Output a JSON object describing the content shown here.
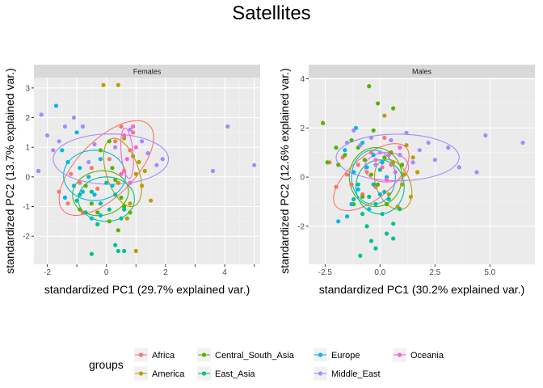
{
  "title": "Satellites",
  "colors": {
    "Africa": "#F8766D",
    "America": "#B79F00",
    "Central_South_Asia": "#00BA38",
    "East_Asia": "#00BFC4",
    "Europe": "#619CFF",
    "Middle_East": "#F564E3",
    "Oceania": "#F564E3"
  },
  "legend": {
    "title": "groups",
    "items": [
      {
        "label": "Africa",
        "color": "#F8766D"
      },
      {
        "label": "America",
        "color": "#B79F00"
      },
      {
        "label": "Central_South_Asia",
        "color": "#53B400"
      },
      {
        "label": "East_Asia",
        "color": "#00C094"
      },
      {
        "label": "Europe",
        "color": "#00B6EB"
      },
      {
        "label": "Middle_East",
        "color": "#A58AFF"
      },
      {
        "label": "Oceania",
        "color": "#FB61D7"
      }
    ]
  },
  "chart_data": [
    {
      "type": "scatter",
      "panel": "Females",
      "xlabel": "standardized PC1 (29.7% explained var.)",
      "ylabel": "standardized PC2 (13.7% explained var.)",
      "xlim": [
        -2.45,
        5.2
      ],
      "ylim": [
        -2.95,
        3.35
      ],
      "xticks": [
        -2,
        -1,
        0,
        1,
        2,
        3,
        4,
        5
      ],
      "xticklabels": [
        "-2",
        "",
        "0",
        "",
        "2",
        "",
        "4",
        ""
      ],
      "yticks": [
        -2,
        -1,
        0,
        1,
        2,
        3
      ],
      "grid": true,
      "ellipses": [
        {
          "group": "Africa",
          "color": "#F8766D",
          "cx": 0.0,
          "cy": 0.3,
          "rx": 2.05,
          "ry": 0.95,
          "angle": 45
        },
        {
          "group": "America",
          "color": "#B79F00",
          "cx": 0.55,
          "cy": 0.15,
          "rx": 1.2,
          "ry": 0.55,
          "angle": -72
        },
        {
          "group": "Central_South_Asia",
          "color": "#53B400",
          "cx": -0.2,
          "cy": -0.55,
          "rx": 0.95,
          "ry": 0.75,
          "angle": 10
        },
        {
          "group": "East_Asia",
          "color": "#00C094",
          "cx": 0.0,
          "cy": -0.75,
          "rx": 0.95,
          "ry": 0.75,
          "angle": 0
        },
        {
          "group": "Europe",
          "color": "#00B6EB",
          "cx": -0.4,
          "cy": 0.05,
          "rx": 1.05,
          "ry": 0.85,
          "angle": 0
        },
        {
          "group": "Middle_East",
          "color": "#A58AFF",
          "cx": 0.15,
          "cy": 0.6,
          "rx": 1.95,
          "ry": 0.85,
          "angle": 0
        },
        {
          "group": "Oceania",
          "color": "#FB61D7",
          "cx": 0.7,
          "cy": 0.8,
          "rx": 0.85,
          "ry": 0.2,
          "angle": -85
        }
      ],
      "series": [
        {
          "group": "Africa",
          "color": "#F8766D",
          "points": [
            [
              -1.6,
              -0.5
            ],
            [
              -1.3,
              -0.9
            ],
            [
              -0.8,
              -1.2
            ],
            [
              -0.5,
              0.3
            ],
            [
              0.1,
              0.6
            ],
            [
              0.3,
              1.2
            ],
            [
              0.5,
              1.7
            ],
            [
              0.8,
              0.9
            ],
            [
              -1.2,
              0.1
            ],
            [
              -0.3,
              -0.4
            ],
            [
              0.6,
              0.2
            ],
            [
              0.9,
              1.5
            ],
            [
              -0.9,
              -0.2
            ]
          ]
        },
        {
          "group": "America",
          "color": "#B79F00",
          "points": [
            [
              -0.1,
              3.1
            ],
            [
              0.4,
              3.1
            ],
            [
              0.6,
              1.3
            ],
            [
              0.9,
              0.7
            ],
            [
              1.0,
              0.1
            ],
            [
              1.2,
              -0.3
            ],
            [
              1.5,
              -0.8
            ],
            [
              0.4,
              -0.2
            ],
            [
              0.7,
              -1.4
            ],
            [
              1.0,
              -2.5
            ],
            [
              1.1,
              0.5
            ],
            [
              1.3,
              0.2
            ],
            [
              0.8,
              -0.9
            ]
          ]
        },
        {
          "group": "Central_South_Asia",
          "color": "#53B400",
          "points": [
            [
              0.1,
              1.2
            ],
            [
              -0.2,
              0.9
            ],
            [
              0.2,
              0.3
            ],
            [
              0.5,
              -0.7
            ],
            [
              0.8,
              -1.2
            ],
            [
              -0.7,
              -0.3
            ],
            [
              -0.3,
              -1.2
            ],
            [
              0.1,
              -1.5
            ],
            [
              -0.5,
              -0.9
            ],
            [
              0.3,
              -0.1
            ],
            [
              0.6,
              -1.0
            ],
            [
              -0.9,
              -1.1
            ],
            [
              0.4,
              -1.8
            ]
          ]
        },
        {
          "group": "East_Asia",
          "color": "#00C094",
          "points": [
            [
              -1.0,
              -0.8
            ],
            [
              -0.7,
              -1.2
            ],
            [
              -0.5,
              -0.5
            ],
            [
              -0.2,
              -0.9
            ],
            [
              0.1,
              -1.1
            ],
            [
              0.3,
              -0.6
            ],
            [
              0.5,
              -1.4
            ],
            [
              0.4,
              -2.5
            ],
            [
              -0.5,
              -2.6
            ],
            [
              0.3,
              -2.3
            ],
            [
              0.6,
              -2.5
            ],
            [
              -0.9,
              -0.6
            ],
            [
              0.0,
              -0.2
            ],
            [
              -0.3,
              -1.6
            ],
            [
              0.6,
              -1.1
            ]
          ]
        },
        {
          "group": "Europe",
          "color": "#00B6EB",
          "points": [
            [
              -2.3,
              0.2
            ],
            [
              -1.7,
              2.4
            ],
            [
              -1.0,
              1.5
            ],
            [
              -1.3,
              0.5
            ],
            [
              -0.9,
              0.3
            ],
            [
              -0.6,
              0.0
            ],
            [
              -0.2,
              0.6
            ],
            [
              -1.1,
              -0.3
            ],
            [
              -1.4,
              -0.7
            ],
            [
              -0.8,
              -0.5
            ],
            [
              -0.5,
              -1.4
            ],
            [
              -0.4,
              -0.6
            ],
            [
              0.2,
              -0.3
            ],
            [
              -1.5,
              0.9
            ],
            [
              -0.2,
              -1.3
            ]
          ]
        },
        {
          "group": "Middle_East",
          "color": "#A58AFF",
          "points": [
            [
              -2.2,
              2.1
            ],
            [
              -2.0,
              1.4
            ],
            [
              -1.8,
              0.9
            ],
            [
              -1.4,
              1.7
            ],
            [
              -1.1,
              2.0
            ],
            [
              -0.8,
              1.7
            ],
            [
              -0.4,
              1.1
            ],
            [
              0.3,
              1.0
            ],
            [
              1.2,
              1.2
            ],
            [
              1.7,
              0.4
            ],
            [
              1.9,
              0.6
            ],
            [
              3.6,
              0.2
            ],
            [
              4.1,
              1.7
            ],
            [
              5.0,
              0.4
            ],
            [
              -1.6,
              1.2
            ],
            [
              0.8,
              1.6
            ],
            [
              1.4,
              0.8
            ],
            [
              -0.6,
              0.5
            ],
            [
              -2.3,
              0.2
            ]
          ]
        },
        {
          "group": "Oceania",
          "color": "#FB61D7",
          "points": [
            [
              0.9,
              1.7
            ],
            [
              0.7,
              0.6
            ],
            [
              0.5,
              0.1
            ],
            [
              0.8,
              -0.2
            ],
            [
              1.0,
              1.0
            ],
            [
              0.6,
              1.4
            ]
          ]
        }
      ]
    },
    {
      "type": "scatter",
      "panel": "Males",
      "xlabel": "standardized PC1 (30.2% explained var.)",
      "ylabel": "standardized PC2 (12.6% explained var.)",
      "xlim": [
        -3.25,
        7.05
      ],
      "ylim": [
        -3.55,
        4.05
      ],
      "xticks": [
        -2.5,
        0.0,
        2.5,
        5.0
      ],
      "xticklabels": [
        "-2.5",
        "0.0",
        "2.5",
        "5.0"
      ],
      "yticks": [
        -2,
        0,
        2,
        4
      ],
      "grid": true,
      "ellipses": [
        {
          "group": "Africa",
          "color": "#F8766D",
          "cx": -0.4,
          "cy": 0.0,
          "rx": 2.0,
          "ry": 0.9,
          "angle": 35
        },
        {
          "group": "America",
          "color": "#B79F00",
          "cx": 0.6,
          "cy": -0.3,
          "rx": 1.1,
          "ry": 0.75,
          "angle": -60
        },
        {
          "group": "Central_South_Asia",
          "color": "#53B400",
          "cx": -0.2,
          "cy": 0.0,
          "rx": 1.2,
          "ry": 1.2,
          "angle": 0
        },
        {
          "group": "East_Asia",
          "color": "#00C094",
          "cx": 0.0,
          "cy": -0.4,
          "rx": 1.1,
          "ry": 1.1,
          "angle": 0
        },
        {
          "group": "Europe",
          "color": "#00B6EB",
          "cx": -0.3,
          "cy": 0.0,
          "rx": 1.0,
          "ry": 1.1,
          "angle": 0
        },
        {
          "group": "Middle_East",
          "color": "#A58AFF",
          "cx": 0.8,
          "cy": 0.8,
          "rx": 2.8,
          "ry": 0.95,
          "angle": 0
        },
        {
          "group": "Oceania",
          "color": "#FB61D7",
          "cx": 0.3,
          "cy": 0.4,
          "rx": 1.0,
          "ry": 0.6,
          "angle": 0
        }
      ],
      "series": [
        {
          "group": "Africa",
          "color": "#F8766D",
          "points": [
            [
              -2.3,
              0.6
            ],
            [
              -2.0,
              -0.4
            ],
            [
              -1.5,
              0.1
            ],
            [
              -1.0,
              0.5
            ],
            [
              -0.8,
              -0.7
            ],
            [
              -0.4,
              1.0
            ],
            [
              0.2,
              1.6
            ],
            [
              -1.3,
              -0.3
            ],
            [
              -0.6,
              0.2
            ],
            [
              -1.7,
              0.8
            ],
            [
              -0.2,
              -0.4
            ],
            [
              0.5,
              0.5
            ]
          ]
        },
        {
          "group": "America",
          "color": "#B79F00",
          "points": [
            [
              0.2,
              2.5
            ],
            [
              1.2,
              1.3
            ],
            [
              1.5,
              0.8
            ],
            [
              1.0,
              -0.3
            ],
            [
              1.4,
              -0.8
            ],
            [
              0.8,
              -1.2
            ],
            [
              1.7,
              0.2
            ],
            [
              0.6,
              0.6
            ],
            [
              1.1,
              0.1
            ],
            [
              0.4,
              -0.7
            ]
          ]
        },
        {
          "group": "Central_South_Asia",
          "color": "#53B400",
          "points": [
            [
              -2.6,
              2.2
            ],
            [
              -2.4,
              0.6
            ],
            [
              -2.0,
              1.2
            ],
            [
              -1.6,
              0.9
            ],
            [
              -1.3,
              1.5
            ],
            [
              -1.0,
              1.2
            ],
            [
              -0.7,
              0.7
            ],
            [
              -0.4,
              0.1
            ],
            [
              -0.1,
              -0.3
            ],
            [
              0.2,
              0.8
            ],
            [
              0.5,
              1.0
            ],
            [
              1.0,
              0.5
            ],
            [
              -0.8,
              -0.8
            ],
            [
              -0.5,
              3.7
            ],
            [
              -0.1,
              3.0
            ],
            [
              0.6,
              2.8
            ],
            [
              -1.9,
              0.5
            ],
            [
              -1.2,
              -1.1
            ],
            [
              0.3,
              -1.1
            ],
            [
              -0.3,
              1.9
            ]
          ]
        },
        {
          "group": "East_Asia",
          "color": "#00C094",
          "points": [
            [
              -1.2,
              -0.9
            ],
            [
              -0.8,
              -1.5
            ],
            [
              -0.5,
              -0.8
            ],
            [
              -0.2,
              -1.1
            ],
            [
              0.1,
              -1.5
            ],
            [
              0.4,
              -0.9
            ],
            [
              0.6,
              -1.9
            ],
            [
              0.3,
              -2.3
            ],
            [
              -0.4,
              -2.6
            ],
            [
              -0.9,
              -3.2
            ],
            [
              -0.2,
              -2.9
            ],
            [
              0.6,
              -2.5
            ],
            [
              -0.6,
              -2.0
            ],
            [
              0.9,
              -1.3
            ],
            [
              -0.3,
              -0.3
            ],
            [
              0.0,
              0.3
            ],
            [
              -1.0,
              -0.3
            ],
            [
              0.2,
              -0.6
            ]
          ]
        },
        {
          "group": "Europe",
          "color": "#00B6EB",
          "points": [
            [
              -1.6,
              1.1
            ],
            [
              -1.2,
              0.2
            ],
            [
              -1.9,
              -1.8
            ],
            [
              -1.5,
              -1.6
            ],
            [
              -1.0,
              -0.5
            ],
            [
              -0.6,
              0.4
            ],
            [
              -0.3,
              0.9
            ],
            [
              0.0,
              -0.7
            ],
            [
              0.3,
              0.0
            ],
            [
              -0.8,
              1.4
            ],
            [
              -1.3,
              -1.1
            ],
            [
              -0.5,
              -1.3
            ],
            [
              0.1,
              0.6
            ],
            [
              -1.1,
              2.0
            ]
          ]
        },
        {
          "group": "Middle_East",
          "color": "#A58AFF",
          "points": [
            [
              -1.5,
              1.4
            ],
            [
              -1.2,
              1.9
            ],
            [
              -0.9,
              1.3
            ],
            [
              -0.4,
              1.6
            ],
            [
              0.0,
              1.0
            ],
            [
              0.5,
              1.5
            ],
            [
              1.2,
              1.8
            ],
            [
              1.8,
              1.1
            ],
            [
              2.5,
              0.7
            ],
            [
              3.1,
              1.2
            ],
            [
              3.6,
              0.4
            ],
            [
              4.4,
              0.2
            ],
            [
              4.8,
              1.7
            ],
            [
              6.5,
              1.4
            ],
            [
              2.2,
              1.4
            ],
            [
              1.5,
              0.6
            ],
            [
              -0.2,
              0.5
            ],
            [
              0.9,
              0.9
            ]
          ]
        },
        {
          "group": "Oceania",
          "color": "#FB61D7",
          "points": [
            [
              0.4,
              0.9
            ],
            [
              0.1,
              0.4
            ],
            [
              -0.2,
              0.7
            ],
            [
              0.7,
              0.2
            ],
            [
              0.9,
              1.2
            ],
            [
              0.3,
              -0.1
            ]
          ]
        }
      ]
    }
  ]
}
